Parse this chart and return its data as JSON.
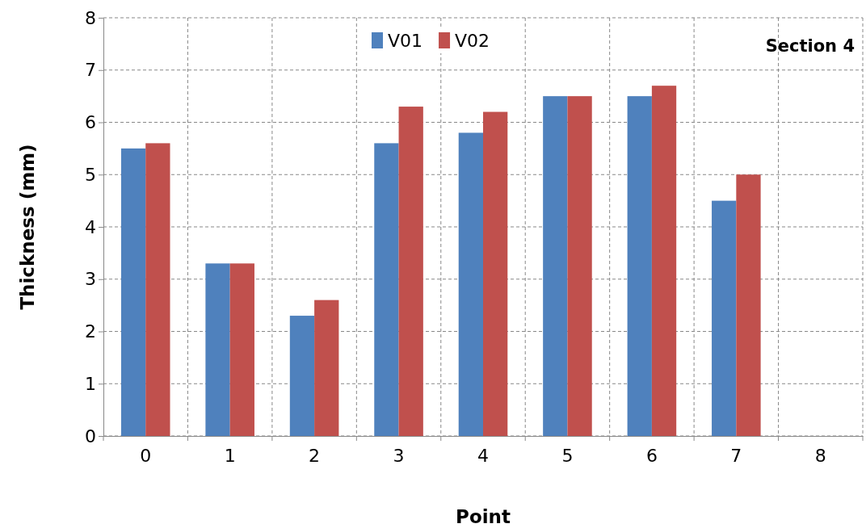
{
  "chart_data": {
    "type": "bar",
    "xlabel": "Point",
    "ylabel": "Thickness (mm)",
    "annotations": [
      "Section 4"
    ],
    "categories": [
      "0",
      "1",
      "2",
      "3",
      "4",
      "5",
      "6",
      "7",
      "8"
    ],
    "series": [
      {
        "name": "V01",
        "color": "#4f81bd",
        "values": [
          5.5,
          3.3,
          2.3,
          5.6,
          5.8,
          6.5,
          6.5,
          4.5,
          null
        ]
      },
      {
        "name": "V02",
        "color": "#c0504d",
        "values": [
          5.6,
          3.3,
          2.6,
          6.3,
          6.2,
          6.5,
          6.7,
          5.0,
          null
        ]
      }
    ],
    "ylim": [
      0,
      8
    ],
    "yticks": [
      0,
      1,
      2,
      3,
      4,
      5,
      6,
      7,
      8
    ],
    "grid": true,
    "legend": "top"
  }
}
